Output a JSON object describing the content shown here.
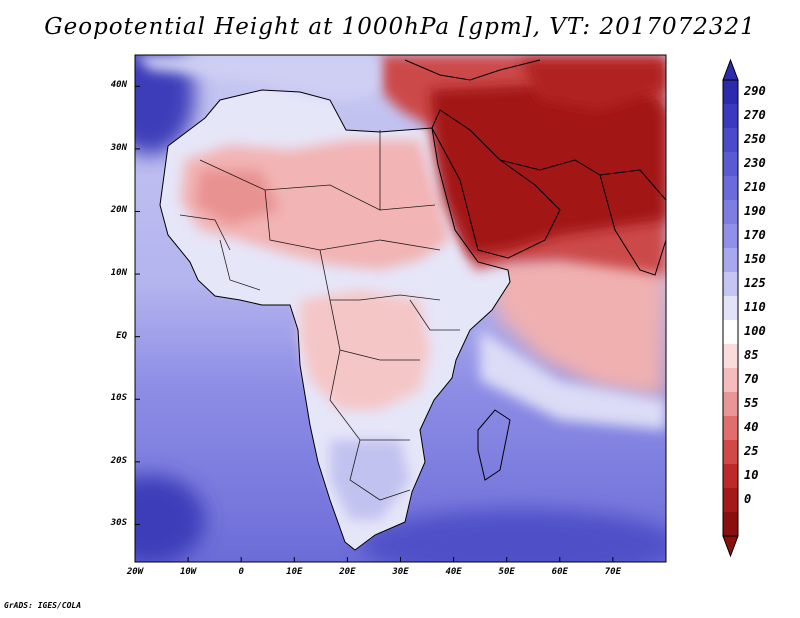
{
  "title": "Geopotential Height at 1000hPa [gpm], VT: 2017072321",
  "credit": "GrADS: IGES/COLA",
  "map": {
    "region": "Africa, Arabia and Western Indian Ocean",
    "lon_range": [
      -20,
      80
    ],
    "lat_range": [
      -36,
      45
    ],
    "x_ticks": [
      "20W",
      "10W",
      "0",
      "10E",
      "20E",
      "30E",
      "40E",
      "50E",
      "60E",
      "70E"
    ],
    "x_tick_lons": [
      -20,
      -10,
      0,
      10,
      20,
      30,
      40,
      50,
      60,
      70
    ],
    "y_ticks": [
      "40N",
      "30N",
      "20N",
      "10N",
      "EQ",
      "10S",
      "20S",
      "30S"
    ],
    "y_tick_lats": [
      40,
      30,
      20,
      10,
      0,
      -10,
      -20,
      -30
    ]
  },
  "colorbar": {
    "labels": [
      "290",
      "270",
      "250",
      "230",
      "210",
      "190",
      "170",
      "150",
      "125",
      "110",
      "100",
      "85",
      "70",
      "55",
      "40",
      "25",
      "10",
      "0"
    ],
    "colors": [
      "#2b2bab",
      "#3a3ac0",
      "#4a4acb",
      "#5a5ad3",
      "#6b6bdb",
      "#7d7de2",
      "#9090e8",
      "#a8a8ee",
      "#c5c5f3",
      "#e2e2f8",
      "#ffffff",
      "#fadcdc",
      "#f4bcbc",
      "#eb9696",
      "#e06e6e",
      "#d04848",
      "#bd2a2a",
      "#a41a1a",
      "#8a1010"
    ]
  },
  "colors": {
    "ocean_south": "#7a7ae0",
    "ocean_deep": "#3434b4",
    "land_neutral": "#e4e4f8",
    "land_warm": "#f3bcbc",
    "arabia_low": "#a41a1a"
  }
}
